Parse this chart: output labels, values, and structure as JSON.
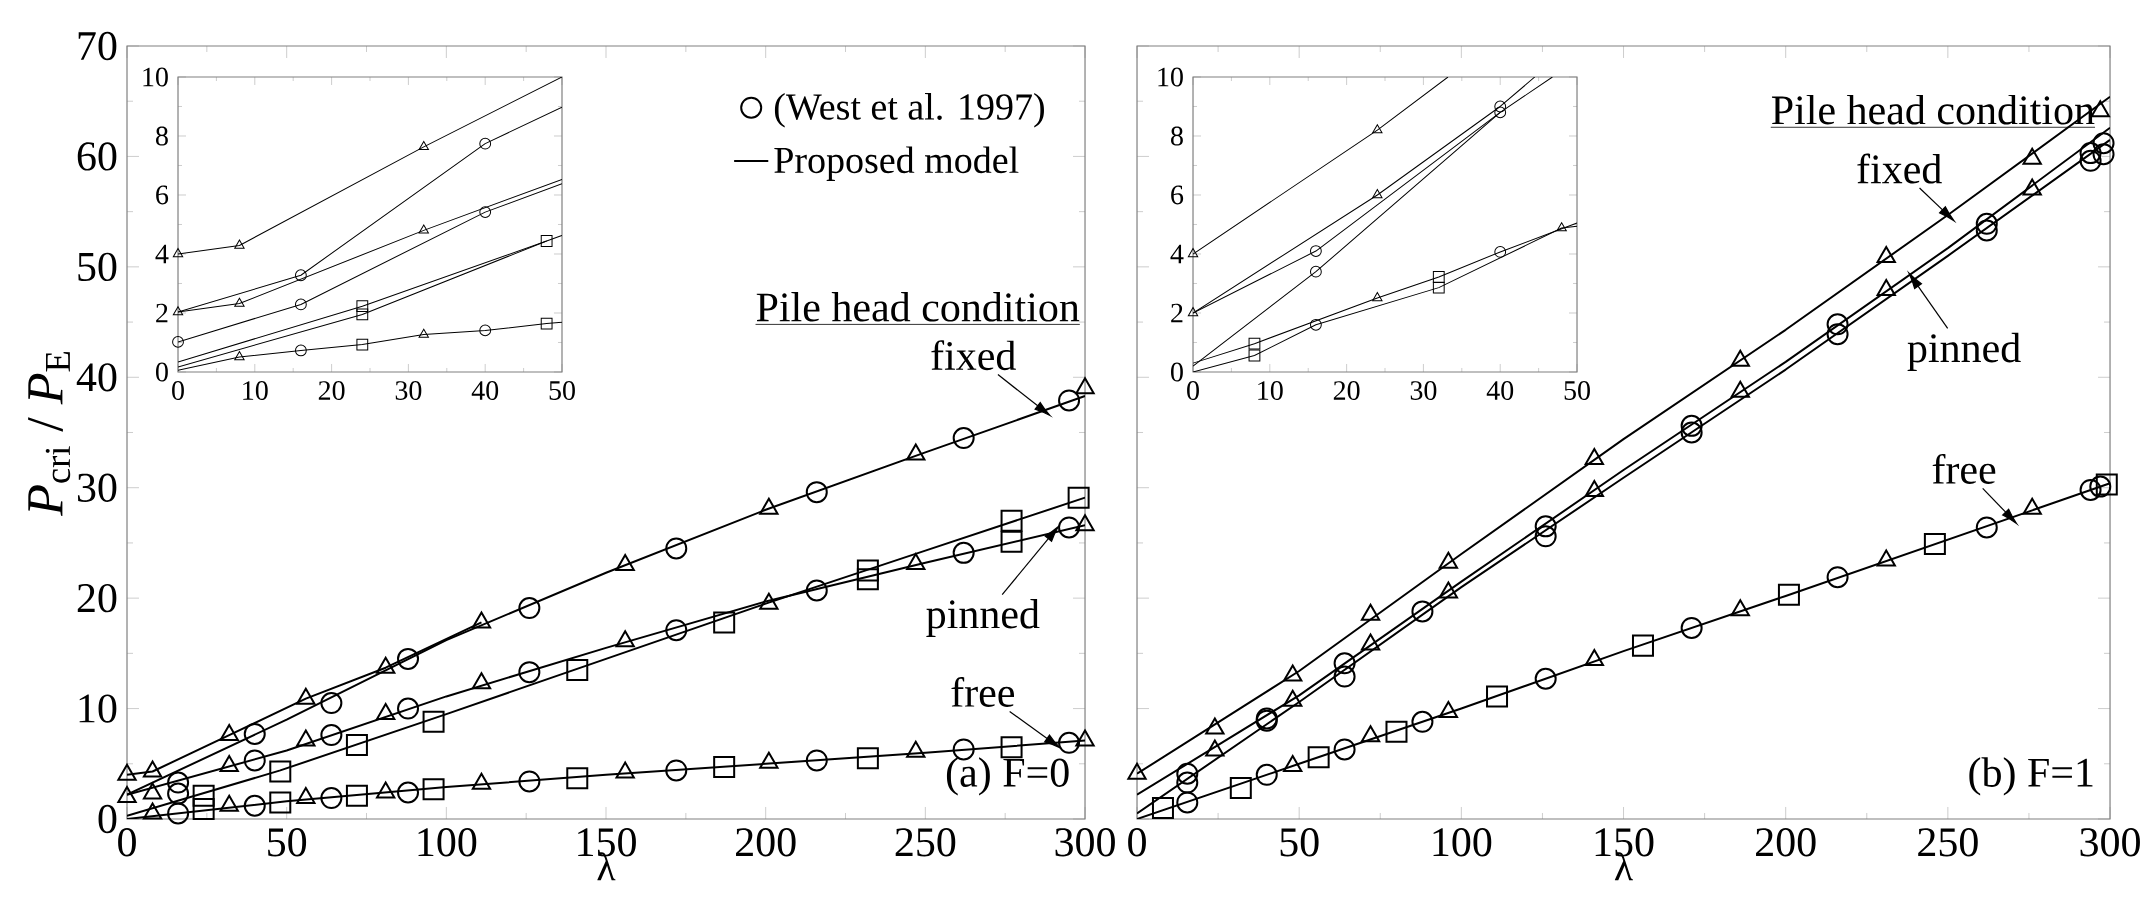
{
  "chart_data": [
    {
      "type": "line",
      "xlim": [
        0,
        300
      ],
      "ylim": [
        0,
        70
      ],
      "xticks": [
        0,
        50,
        100,
        150,
        200,
        250,
        300
      ],
      "yticks": [
        0,
        10,
        20,
        30,
        40,
        50,
        60,
        70
      ],
      "xlabel": "λ",
      "ylabel": "*P*$_{cri}$ / *P*$_{E}$",
      "legend": "top right",
      "annotations": [
        "Pile head condition",
        {
          "text": "fixed",
          "x": 287,
          "y": 37.0
        },
        {
          "text": "pinned",
          "x": 290,
          "y": 25.9
        },
        {
          "text": "free",
          "x": 290,
          "y": 6.9
        },
        "(a) F=0"
      ],
      "series": [
        {
          "type": "line",
          "name": "Proposed model",
          "color": "#000000",
          "marker": "none",
          "x": [
            0,
            50,
            100,
            150,
            200,
            250,
            300
          ],
          "values": [
            2.2,
            9.0,
            16.2,
            22.3,
            28.0,
            33.2,
            38.3
          ]
        },
        {
          "type": "line",
          "color": "#000000",
          "marker": "none",
          "x": [
            0,
            8,
            32,
            56,
            81,
            111
          ],
          "values": [
            4.0,
            4.3,
            7.6,
            10.9,
            13.7,
            17.8
          ]
        },
        {
          "type": "line",
          "color": "#000000",
          "marker": "none",
          "x": [
            0,
            48,
            100,
            150,
            200,
            250,
            300
          ],
          "values": [
            0.3,
            4.4,
            9.5,
            14.5,
            19.5,
            24.3,
            29.1
          ]
        },
        {
          "type": "line",
          "color": "#000000",
          "marker": "none",
          "x": [
            0,
            50,
            100,
            150,
            200,
            250,
            300
          ],
          "values": [
            2.2,
            6.2,
            11.1,
            15.5,
            19.7,
            23.2,
            26.6
          ]
        },
        {
          "type": "line",
          "color": "#000000",
          "marker": "none",
          "x": [
            0,
            50,
            100,
            150,
            200,
            250,
            300
          ],
          "values": [
            0,
            1.6,
            2.9,
            4.0,
            5.0,
            6.0,
            7.1
          ]
        },
        {
          "type": "scatter",
          "name": "(West et al. 1997)",
          "color": "#000000",
          "marker": "circle",
          "x": [
            16,
            40,
            64,
            88,
            126,
            172,
            216,
            262,
            295,
            16,
            40,
            64,
            88,
            126,
            172,
            216,
            262,
            295,
            16,
            40,
            64,
            88,
            126,
            172,
            216,
            262,
            295
          ],
          "values": [
            3.3,
            7.7,
            10.5,
            14.5,
            19.1,
            24.5,
            29.6,
            34.5,
            37.9,
            2.3,
            5.3,
            7.6,
            10.0,
            13.3,
            17.1,
            20.7,
            24.1,
            26.4,
            0.5,
            1.2,
            1.9,
            2.4,
            3.4,
            4.4,
            5.3,
            6.3,
            6.9
          ]
        },
        {
          "type": "scatter",
          "color": "#000000",
          "marker": "square",
          "x": [
            24,
            48,
            72,
            96,
            141,
            187,
            232,
            232,
            277,
            277,
            298,
            24,
            48,
            72,
            96,
            141,
            187,
            232,
            277
          ],
          "values": [
            2.1,
            4.3,
            6.7,
            8.8,
            13.5,
            17.8,
            22.5,
            21.7,
            27.0,
            25.1,
            29.1,
            0.9,
            1.5,
            2.1,
            2.7,
            3.7,
            4.7,
            5.5,
            6.5
          ]
        },
        {
          "type": "scatter",
          "color": "#000000",
          "marker": "triangle",
          "x": [
            0,
            8,
            32,
            56,
            81,
            111,
            156,
            201,
            247,
            300,
            0,
            8,
            32,
            56,
            81,
            111,
            156,
            201,
            247,
            300,
            8,
            32,
            56,
            81,
            111,
            156,
            201,
            247,
            300
          ],
          "values": [
            4.0,
            4.3,
            7.6,
            10.9,
            13.7,
            17.8,
            23.0,
            28.1,
            33.0,
            39.0,
            2.0,
            2.3,
            4.8,
            7.1,
            9.5,
            12.3,
            16.1,
            19.5,
            23.1,
            26.6,
            0.5,
            1.2,
            1.9,
            2.4,
            3.2,
            4.2,
            5.1,
            6.1,
            7.1
          ]
        }
      ]
    },
    {
      "type": "line",
      "xlim": [
        0,
        50
      ],
      "ylim": [
        0,
        10
      ],
      "xticks": [
        0,
        10,
        20,
        30,
        40,
        50
      ],
      "yticks": [
        0,
        2,
        4,
        6,
        8,
        10
      ],
      "series": [
        {
          "type": "line",
          "color": "#000000",
          "marker": "none",
          "x": [
            0,
            8,
            32,
            50
          ],
          "values": [
            4.0,
            4.29,
            7.63,
            10
          ]
        },
        {
          "type": "line",
          "color": "#000000",
          "marker": "none",
          "x": [
            0,
            16,
            40,
            50
          ],
          "values": [
            2.03,
            3.28,
            7.74,
            8.98
          ]
        },
        {
          "type": "line",
          "color": "#000000",
          "marker": "none",
          "x": [
            0,
            8,
            32,
            50
          ],
          "values": [
            2.03,
            2.32,
            4.8,
            6.53
          ]
        },
        {
          "type": "line",
          "color": "#000000",
          "marker": "none",
          "x": [
            0,
            16,
            40,
            50
          ],
          "values": [
            1.02,
            2.29,
            5.42,
            6.38
          ]
        },
        {
          "type": "line",
          "color": "#000000",
          "marker": "none",
          "x": [
            0,
            24,
            48,
            50
          ],
          "values": [
            0.34,
            2.23,
            4.44,
            4.63
          ]
        },
        {
          "type": "line",
          "color": "#000000",
          "marker": "none",
          "x": [
            0,
            24,
            48
          ],
          "values": [
            0.17,
            1.95,
            4.44
          ]
        },
        {
          "type": "line",
          "color": "#000000",
          "marker": "none",
          "x": [
            0,
            8,
            16,
            24,
            32,
            40,
            48,
            50
          ],
          "values": [
            0.06,
            0.51,
            0.73,
            0.93,
            1.27,
            1.41,
            1.64,
            1.69
          ]
        },
        {
          "type": "scatter",
          "color": "#000000",
          "marker": "circle",
          "x": [
            16,
            40,
            0,
            16,
            40,
            16,
            40
          ],
          "values": [
            3.28,
            7.74,
            1.02,
            2.29,
            5.42,
            0.73,
            1.41
          ]
        },
        {
          "type": "scatter",
          "color": "#000000",
          "marker": "square",
          "x": [
            24,
            24,
            48,
            24,
            48
          ],
          "values": [
            2.23,
            1.95,
            4.44,
            0.93,
            1.64
          ]
        },
        {
          "type": "scatter",
          "color": "#000000",
          "marker": "triangle",
          "x": [
            0,
            8,
            32,
            0,
            8,
            32,
            8,
            32
          ],
          "values": [
            4.0,
            4.29,
            7.63,
            2.03,
            2.32,
            4.8,
            0.51,
            1.27
          ]
        }
      ]
    },
    {
      "type": "line",
      "xlim": [
        0,
        300
      ],
      "ylim": [
        0,
        70
      ],
      "xticks": [
        0,
        50,
        100,
        150,
        200,
        250,
        300
      ],
      "yticks": [
        0,
        10,
        20,
        30,
        40,
        50,
        60,
        70
      ],
      "xlabel": "λ",
      "tick_labels": "x",
      "annotations": [
        "Pile head condition",
        {
          "text": "fixed",
          "x": 250,
          "y": 54.7
        },
        {
          "text": "pinned",
          "x": 239.5,
          "y": 48.8
        },
        {
          "text": "free",
          "x": 269.4,
          "y": 27.3
        },
        "(b) F=1"
      ],
      "series": [
        {
          "type": "line",
          "color": "#000000",
          "marker": "none",
          "x": [
            0,
            50,
            100,
            150,
            200,
            250,
            300
          ],
          "values": [
            4.1,
            13.4,
            24.0,
            34.4,
            44.3,
            54.7,
            65.4
          ]
        },
        {
          "type": "line",
          "color": "#000000",
          "marker": "none",
          "x": [
            0,
            50,
            100,
            150,
            200,
            250,
            300
          ],
          "values": [
            2.2,
            11.2,
            21.5,
            31.6,
            41.4,
            51.7,
            62.6
          ]
        },
        {
          "type": "line",
          "color": "#000000",
          "marker": "none",
          "x": [
            0,
            50,
            100,
            150,
            200,
            250,
            300
          ],
          "values": [
            0.5,
            10.6,
            21.0,
            30.9,
            40.7,
            51.0,
            61.5
          ]
        },
        {
          "type": "line",
          "color": "#000000",
          "marker": "none",
          "x": [
            0,
            50,
            100,
            150,
            200,
            250,
            300
          ],
          "values": [
            0,
            5.0,
            10.0,
            15.2,
            20.2,
            25.3,
            30.4
          ]
        },
        {
          "type": "scatter",
          "color": "#000000",
          "marker": "circle",
          "x": [
            15.5,
            15.5,
            40,
            40,
            64,
            64,
            88,
            126,
            126,
            171,
            171,
            216,
            216,
            262,
            262,
            294,
            294,
            298,
            298,
            15.5,
            40,
            64,
            88,
            126,
            171,
            216,
            262,
            294,
            297
          ],
          "values": [
            4.1,
            3.3,
            8.9,
            9.1,
            14.1,
            12.9,
            18.8,
            26.5,
            25.6,
            35.6,
            35.0,
            44.8,
            43.9,
            53.9,
            53.3,
            60.3,
            59.6,
            61.2,
            60.2,
            1.5,
            4.0,
            6.3,
            8.8,
            12.7,
            17.3,
            21.9,
            26.4,
            29.8,
            30.1
          ]
        },
        {
          "type": "scatter",
          "color": "#000000",
          "marker": "square",
          "x": [
            8,
            32,
            56,
            80,
            111,
            156,
            201,
            246,
            299
          ],
          "values": [
            1.0,
            2.8,
            5.6,
            7.9,
            11.1,
            15.7,
            20.3,
            24.9,
            30.3
          ]
        },
        {
          "type": "scatter",
          "color": "#000000",
          "marker": "triangle",
          "x": [
            0,
            24,
            48,
            72,
            96,
            141,
            186,
            231,
            276,
            297,
            24,
            48,
            72,
            96,
            141,
            186,
            231,
            276,
            48,
            72,
            96,
            141,
            186,
            231,
            276
          ],
          "values": [
            4.1,
            8.2,
            13.0,
            18.5,
            23.2,
            32.6,
            41.5,
            50.9,
            59.8,
            64.1,
            6.2,
            10.7,
            15.8,
            20.5,
            29.7,
            38.7,
            47.9,
            57.0,
            4.8,
            7.5,
            9.7,
            14.4,
            18.9,
            23.4,
            28.1
          ]
        }
      ]
    },
    {
      "type": "line",
      "xlim": [
        0,
        50
      ],
      "ylim": [
        0,
        10
      ],
      "xticks": [
        0,
        10,
        20,
        30,
        40,
        50
      ],
      "yticks": [
        0,
        2,
        4,
        6,
        8,
        10
      ],
      "series": [
        {
          "type": "line",
          "color": "#000000",
          "marker": "none",
          "x": [
            0,
            24,
            33.2
          ],
          "values": [
            4.0,
            8.2,
            10
          ]
        },
        {
          "type": "line",
          "color": "#000000",
          "marker": "none",
          "x": [
            0,
            24,
            40,
            44.5
          ],
          "values": [
            2.0,
            6.0,
            9.0,
            10
          ]
        },
        {
          "type": "line",
          "color": "#000000",
          "marker": "none",
          "x": [
            0,
            16,
            40,
            46.8
          ],
          "values": [
            2.0,
            4.1,
            8.8,
            10
          ]
        },
        {
          "type": "line",
          "color": "#000000",
          "marker": "none",
          "x": [
            0,
            16,
            40
          ],
          "values": [
            0.2,
            3.4,
            8.8
          ]
        },
        {
          "type": "line",
          "color": "#000000",
          "marker": "none",
          "x": [
            0,
            8,
            24,
            32,
            40,
            50
          ],
          "values": [
            0.3,
            0.96,
            2.51,
            3.22,
            4.07,
            5.05
          ]
        },
        {
          "type": "line",
          "color": "#000000",
          "marker": "none",
          "x": [
            0,
            8,
            16,
            32,
            48,
            50
          ],
          "values": [
            0,
            0.56,
            1.6,
            2.86,
            4.88,
            4.94
          ]
        },
        {
          "type": "scatter",
          "color": "#000000",
          "marker": "circle",
          "x": [
            16,
            40,
            16,
            40,
            16,
            40
          ],
          "values": [
            4.1,
            9.0,
            3.4,
            8.8,
            1.6,
            4.07
          ]
        },
        {
          "type": "scatter",
          "color": "#000000",
          "marker": "square",
          "x": [
            8,
            8,
            32,
            32
          ],
          "values": [
            0.96,
            0.56,
            3.22,
            2.86
          ]
        },
        {
          "type": "scatter",
          "color": "#000000",
          "marker": "triangle",
          "x": [
            0,
            24,
            0,
            24,
            24,
            48
          ],
          "values": [
            4.0,
            8.2,
            2.0,
            6.0,
            2.51,
            4.88
          ]
        }
      ]
    }
  ]
}
